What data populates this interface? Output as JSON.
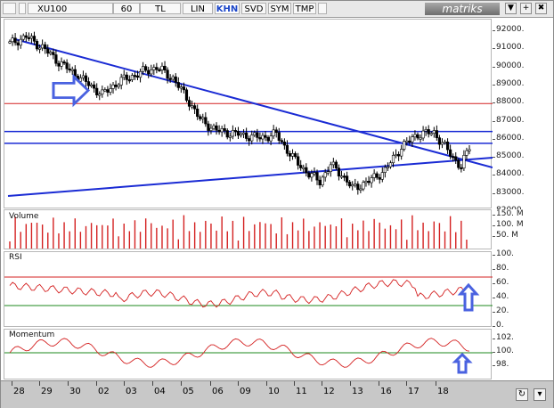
{
  "toolbar": {
    "symbol": "XU100",
    "period": "60",
    "currency": "TL",
    "scale_lin": "LIN",
    "khn": "KHN",
    "svd": "SVD",
    "sym": "SYM",
    "tmp": "TMP",
    "brand": "matriks",
    "win_btn_down": "▼",
    "win_btn_plus": "+",
    "win_btn_close": "✖"
  },
  "colors": {
    "candles": "#000000",
    "trendline": "#1a2bd4",
    "support_lines": "#1a2bd4",
    "red_level": "#d42020",
    "volume_bars": "#d42020",
    "rsi_line": "#d42020",
    "momentum_line": "#d42020",
    "green_level": "#1e8a1e",
    "annotation_arrows": "#4a62e0"
  },
  "panels": {
    "price": {
      "scale_labels": [
        "92000.",
        "91000.",
        "90000.",
        "89000.",
        "88000.",
        "87000.",
        "86000.",
        "85000.",
        "84000.",
        "83000.",
        "82000."
      ]
    },
    "volume": {
      "title": "Volume",
      "scale_labels": [
        "150. M",
        "100. M",
        "50. M"
      ]
    },
    "rsi": {
      "title": "RSI",
      "scale_labels": [
        "100.",
        "80.",
        "60.",
        "40.",
        "20.",
        "0."
      ]
    },
    "momentum": {
      "title": "Momentum",
      "scale_labels": [
        "102.",
        "100.",
        "98."
      ]
    }
  },
  "annotations": {
    "arrow_right_icon": "right-arrow",
    "arrow_up_icon_rsi": "up-arrow",
    "arrow_up_icon_mom": "up-arrow"
  },
  "xaxis": {
    "labels": [
      "28",
      "29",
      "30",
      "02",
      "03",
      "04",
      "05",
      "06",
      "09",
      "10",
      "11",
      "12",
      "13",
      "16",
      "17",
      "18"
    ]
  },
  "footer": {
    "refresh_icon": "refresh-icon",
    "nav_icon": "dropdown-icon",
    "arrow_glyph": "↻",
    "nav_glyph": "▾"
  },
  "chart_data": {
    "type": "candlestick",
    "symbol": "XU100",
    "ylim": [
      82000,
      92500
    ],
    "price_levels": [
      88000,
      86500,
      85800
    ],
    "indicators": [
      "Volume",
      "RSI",
      "Momentum"
    ],
    "rsi_levels": [
      70,
      30
    ],
    "momentum_level": 100
  }
}
